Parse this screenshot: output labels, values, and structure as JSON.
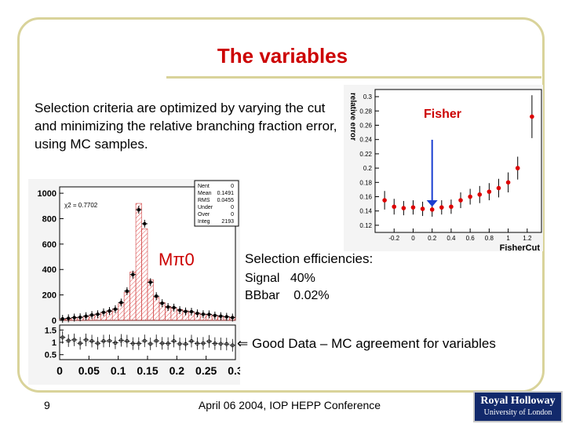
{
  "slide": {
    "title": "The variables",
    "intro": "Selection criteria are optimized by varying the cut and minimizing the relative branching fraction error, using MC samples.",
    "efficiencies_heading": "Selection efficiencies:",
    "signal_label": "Signal",
    "signal_value": "40%",
    "bbbar_label": "BBbar",
    "bbbar_value": "0.02%",
    "agreement_text": "Good Data – MC agreement for variables",
    "page_number": "9",
    "footer": "April 06 2004, IOP HEPP Conference",
    "logo_line1": "Royal Holloway",
    "logo_line2": "University of London"
  },
  "colors": {
    "title": "#cc0000",
    "frame": "#d9d39a",
    "marker": "#dd0000",
    "arrow": "#1a3fd1",
    "logo_bg": "#12296b"
  },
  "chart_data": [
    {
      "type": "scatter",
      "title": "Fisher",
      "xlabel": "FisherCut",
      "ylabel": "relative error",
      "x_ticks": [
        "-0.2",
        "0",
        "0.2",
        "0.4",
        "0.6",
        "0.8",
        "1",
        "1.2"
      ],
      "y_ticks": [
        "0.12",
        "0.14",
        "0.16",
        "0.18",
        "0.2",
        "0.22",
        "0.24",
        "0.26",
        "0.28",
        "0.3"
      ],
      "xlim": [
        -0.4,
        1.35
      ],
      "ylim": [
        0.11,
        0.31
      ],
      "optimum_arrow_x": 0.2,
      "points": [
        {
          "x": -0.3,
          "y": 0.155,
          "err": 0.013
        },
        {
          "x": -0.2,
          "y": 0.146,
          "err": 0.011
        },
        {
          "x": -0.1,
          "y": 0.144,
          "err": 0.01
        },
        {
          "x": 0.0,
          "y": 0.145,
          "err": 0.01
        },
        {
          "x": 0.1,
          "y": 0.143,
          "err": 0.01
        },
        {
          "x": 0.2,
          "y": 0.142,
          "err": 0.01
        },
        {
          "x": 0.3,
          "y": 0.145,
          "err": 0.01
        },
        {
          "x": 0.4,
          "y": 0.146,
          "err": 0.01
        },
        {
          "x": 0.5,
          "y": 0.155,
          "err": 0.011
        },
        {
          "x": 0.6,
          "y": 0.16,
          "err": 0.011
        },
        {
          "x": 0.7,
          "y": 0.163,
          "err": 0.012
        },
        {
          "x": 0.8,
          "y": 0.167,
          "err": 0.012
        },
        {
          "x": 0.9,
          "y": 0.172,
          "err": 0.013
        },
        {
          "x": 1.0,
          "y": 0.18,
          "err": 0.014
        },
        {
          "x": 1.1,
          "y": 0.2,
          "err": 0.016
        },
        {
          "x": 1.25,
          "y": 0.272,
          "err": 0.03
        }
      ]
    },
    {
      "type": "bar",
      "title": "Mπ0",
      "stats": {
        "Nent": "0",
        "Mean": "0.1491",
        "RMS": "0.0455",
        "Under": "0",
        "Over": "0",
        "Integ": "2193"
      },
      "chi2_label": "χ2 = 0.7702",
      "x_ticks": [
        "0",
        "0.05",
        "0.1",
        "0.15",
        "0.2",
        "0.25",
        "0.3"
      ],
      "y_ticks": [
        "0",
        "200",
        "400",
        "600",
        "800",
        "1000"
      ],
      "ratio_y_ticks": [
        "0.5",
        "1",
        "1.5"
      ],
      "xlim": [
        0,
        0.3
      ],
      "ylim": [
        0,
        1050
      ],
      "bin_width": 0.01,
      "bin_centers": [
        0.005,
        0.015,
        0.025,
        0.035,
        0.045,
        0.055,
        0.065,
        0.075,
        0.085,
        0.095,
        0.105,
        0.115,
        0.125,
        0.135,
        0.145,
        0.155,
        0.165,
        0.175,
        0.185,
        0.195,
        0.205,
        0.215,
        0.225,
        0.235,
        0.245,
        0.255,
        0.265,
        0.275,
        0.285,
        0.295
      ],
      "mc_values": [
        10,
        15,
        20,
        25,
        30,
        40,
        50,
        60,
        70,
        90,
        130,
        220,
        380,
        920,
        720,
        320,
        180,
        140,
        110,
        95,
        85,
        75,
        65,
        58,
        50,
        45,
        40,
        35,
        30,
        25
      ],
      "data_values": [
        12,
        16,
        22,
        24,
        33,
        42,
        48,
        63,
        74,
        88,
        140,
        230,
        360,
        870,
        760,
        300,
        190,
        135,
        105,
        100,
        80,
        70,
        68,
        55,
        48,
        47,
        38,
        33,
        28,
        22
      ],
      "ratio_values": [
        1.2,
        1.07,
        1.1,
        0.96,
        1.1,
        1.05,
        0.96,
        1.05,
        1.06,
        0.98,
        1.08,
        1.05,
        0.95,
        0.95,
        1.06,
        0.94,
        1.06,
        0.96,
        0.95,
        1.05,
        0.94,
        0.93,
        1.05,
        0.95,
        0.96,
        1.04,
        0.95,
        0.94,
        0.93,
        0.88
      ]
    }
  ]
}
